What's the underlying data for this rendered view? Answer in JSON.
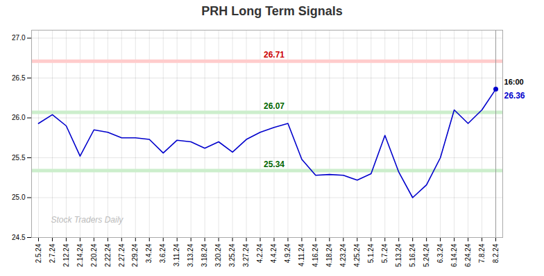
{
  "chart_data": {
    "type": "line",
    "title": "PRH Long Term Signals",
    "categories": [
      "2.5.24",
      "2.7.24",
      "2.12.24",
      "2.14.24",
      "2.20.24",
      "2.22.24",
      "2.27.24",
      "2.29.24",
      "3.4.24",
      "3.6.24",
      "3.11.24",
      "3.13.24",
      "3.18.24",
      "3.20.24",
      "3.25.24",
      "3.27.24",
      "4.2.24",
      "4.4.24",
      "4.9.24",
      "4.11.24",
      "4.16.24",
      "4.18.24",
      "4.23.24",
      "4.25.24",
      "5.1.24",
      "5.7.24",
      "5.13.24",
      "5.16.24",
      "5.24.24",
      "6.3.24",
      "6.14.24",
      "6.24.24",
      "7.8.24",
      "8.2.24"
    ],
    "values": [
      25.93,
      26.04,
      25.9,
      25.52,
      25.85,
      25.82,
      25.75,
      25.75,
      25.73,
      25.56,
      25.72,
      25.7,
      25.62,
      25.7,
      25.57,
      25.73,
      25.82,
      25.88,
      25.93,
      25.48,
      25.28,
      25.29,
      25.28,
      25.22,
      25.3,
      25.78,
      25.32,
      25.0,
      25.16,
      25.5,
      26.1,
      25.93,
      26.1,
      26.36
    ],
    "color": "#0000cc",
    "ylim": [
      24.5,
      27.1
    ],
    "yticks": [
      24.5,
      {
        "value": 25.0,
        "label": "25.0"
      },
      25.5,
      {
        "value": 26.0,
        "label": "26.0"
      },
      26.5,
      {
        "value": 27.0,
        "label": "27.0"
      }
    ],
    "grid": true,
    "levels": [
      {
        "value": 26.71,
        "color": "#cc0000",
        "band_color": "#ffcccc"
      },
      {
        "value": 26.07,
        "color": "#006600",
        "band_color": "#cceecc"
      },
      {
        "value": 25.34,
        "color": "#006600",
        "band_color": "#cceecc"
      }
    ],
    "last_point": {
      "time": "16:00",
      "price": 26.36
    },
    "watermark": "Stock Traders Daily"
  }
}
